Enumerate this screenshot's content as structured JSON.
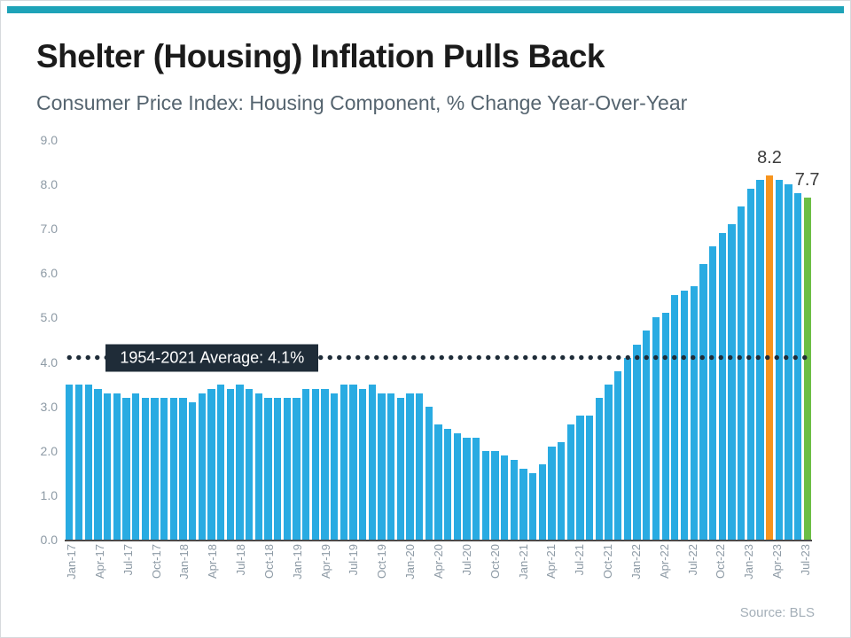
{
  "accent": {
    "top_bar_color": "#1ea3b8"
  },
  "header": {
    "title": "Shelter (Housing) Inflation Pulls Back",
    "subtitle": "Consumer Price Index: Housing Component, % Change Year-Over-Year"
  },
  "footer": {
    "source": "Source: BLS"
  },
  "chart_data": {
    "type": "bar",
    "title": "Shelter (Housing) Inflation Pulls Back",
    "subtitle": "Consumer Price Index: Housing Component, % Change Year-Over-Year",
    "xlabel": "",
    "ylabel": "",
    "ylim": [
      0,
      9
    ],
    "ytick_labels": [
      "9.0",
      "8.0",
      "7.0",
      "6.0",
      "5.0",
      "4.0",
      "3.0",
      "2.0",
      "1.0",
      "0.0"
    ],
    "x_label_every": 3,
    "grid": false,
    "bar_color": "#29abe2",
    "peak_color": "#f7941d",
    "latest_color": "#6cbe45",
    "avg_line": {
      "value": 4.1,
      "label": "1954-2021 Average: 4.1%",
      "dot_color": "#1f2c38",
      "box_bg": "#1f2c38",
      "box_text_color": "#ffffff"
    },
    "annotations": [
      {
        "index": 74,
        "text": "8.2"
      },
      {
        "index": 78,
        "text": "7.7"
      }
    ],
    "highlight": {
      "peak_index": 74,
      "latest_index": 78
    },
    "categories": [
      "Jan-17",
      "Feb-17",
      "Mar-17",
      "Apr-17",
      "May-17",
      "Jun-17",
      "Jul-17",
      "Aug-17",
      "Sep-17",
      "Oct-17",
      "Nov-17",
      "Dec-17",
      "Jan-18",
      "Feb-18",
      "Mar-18",
      "Apr-18",
      "May-18",
      "Jun-18",
      "Jul-18",
      "Aug-18",
      "Sep-18",
      "Oct-18",
      "Nov-18",
      "Dec-18",
      "Jan-19",
      "Feb-19",
      "Mar-19",
      "Apr-19",
      "May-19",
      "Jun-19",
      "Jul-19",
      "Aug-19",
      "Sep-19",
      "Oct-19",
      "Nov-19",
      "Dec-19",
      "Jan-20",
      "Feb-20",
      "Mar-20",
      "Apr-20",
      "May-20",
      "Jun-20",
      "Jul-20",
      "Aug-20",
      "Sep-20",
      "Oct-20",
      "Nov-20",
      "Dec-20",
      "Jan-21",
      "Feb-21",
      "Mar-21",
      "Apr-21",
      "May-21",
      "Jun-21",
      "Jul-21",
      "Aug-21",
      "Sep-21",
      "Oct-21",
      "Nov-21",
      "Dec-21",
      "Jan-22",
      "Feb-22",
      "Mar-22",
      "Apr-22",
      "May-22",
      "Jun-22",
      "Jul-22",
      "Aug-22",
      "Sep-22",
      "Oct-22",
      "Nov-22",
      "Dec-22",
      "Jan-23",
      "Feb-23",
      "Mar-23",
      "Apr-23",
      "May-23",
      "Jun-23",
      "Jul-23"
    ],
    "values": [
      3.5,
      3.5,
      3.5,
      3.4,
      3.3,
      3.3,
      3.2,
      3.3,
      3.2,
      3.2,
      3.2,
      3.2,
      3.2,
      3.1,
      3.3,
      3.4,
      3.5,
      3.4,
      3.5,
      3.4,
      3.3,
      3.2,
      3.2,
      3.2,
      3.2,
      3.4,
      3.4,
      3.4,
      3.3,
      3.5,
      3.5,
      3.4,
      3.5,
      3.3,
      3.3,
      3.2,
      3.3,
      3.3,
      3.0,
      2.6,
      2.5,
      2.4,
      2.3,
      2.3,
      2.0,
      2.0,
      1.9,
      1.8,
      1.6,
      1.5,
      1.7,
      2.1,
      2.2,
      2.6,
      2.8,
      2.8,
      3.2,
      3.5,
      3.8,
      4.1,
      4.4,
      4.7,
      5.0,
      5.1,
      5.5,
      5.6,
      5.7,
      6.2,
      6.6,
      6.9,
      7.1,
      7.5,
      7.9,
      8.1,
      8.2,
      8.1,
      8.0,
      7.8,
      7.7
    ]
  }
}
